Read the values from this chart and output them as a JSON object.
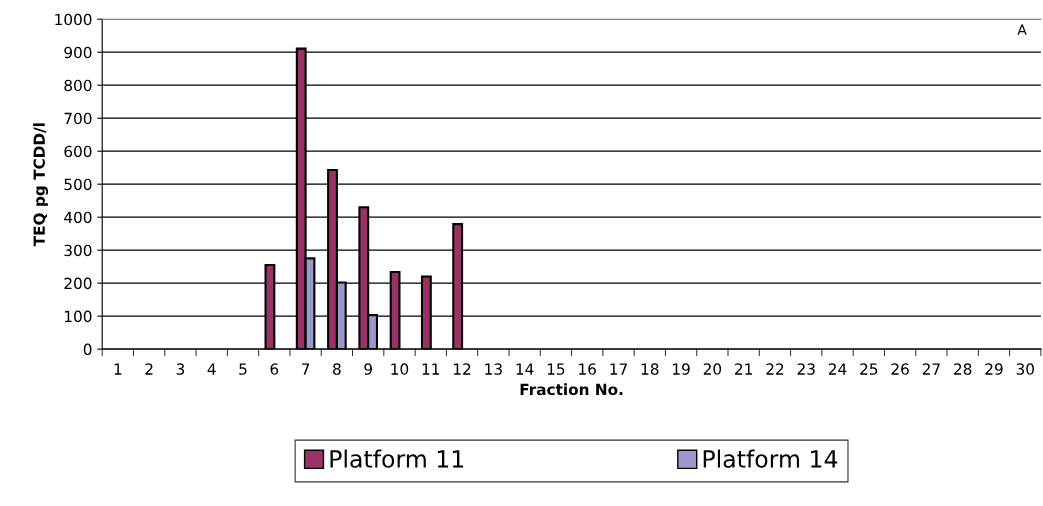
{
  "chart_data": {
    "type": "bar",
    "xlabel": "Fraction No.",
    "ylabel": "TEQ pg TCDD/l",
    "categories": [
      "1",
      "2",
      "3",
      "4",
      "5",
      "6",
      "7",
      "8",
      "9",
      "10",
      "11",
      "12",
      "13",
      "14",
      "15",
      "16",
      "17",
      "18",
      "19",
      "20",
      "21",
      "22",
      "23",
      "24",
      "25",
      "26",
      "27",
      "28",
      "29",
      "30"
    ],
    "series": [
      {
        "name": "Platform 11",
        "color": "#993366",
        "values": [
          null,
          null,
          null,
          null,
          null,
          255,
          911,
          543,
          430,
          234,
          220,
          379,
          null,
          null,
          null,
          null,
          null,
          null,
          null,
          null,
          null,
          null,
          null,
          null,
          null,
          null,
          null,
          null,
          null,
          null
        ]
      },
      {
        "name": "Platform 14",
        "color": "#9999cc",
        "values": [
          null,
          null,
          null,
          null,
          null,
          null,
          275,
          202,
          103,
          null,
          null,
          null,
          null,
          null,
          null,
          null,
          null,
          null,
          null,
          null,
          null,
          null,
          null,
          null,
          null,
          null,
          null,
          null,
          null,
          null
        ]
      }
    ],
    "ylim": [
      0,
      1000
    ],
    "yticks": [
      0,
      100,
      200,
      300,
      400,
      500,
      600,
      700,
      800,
      900,
      1000
    ],
    "grid": "y",
    "legend": "bottom",
    "annotations": [
      "A"
    ]
  }
}
